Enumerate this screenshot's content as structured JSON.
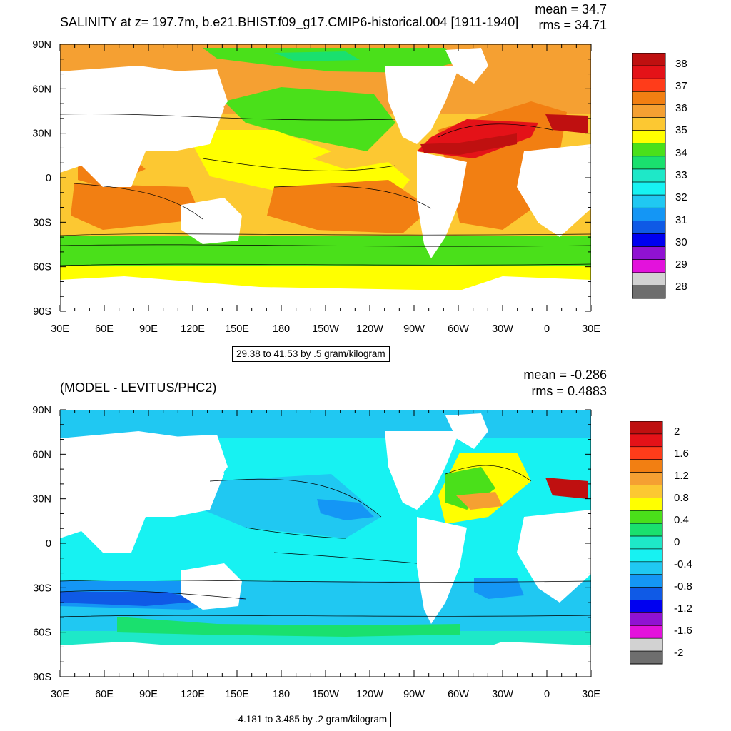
{
  "panel_top": {
    "title": "SALINITY at z= 197.7m, b.e21.BHIST.f09_g17.CMIP6-historical.004 [1911-1940]",
    "mean_text": "mean = 34.7",
    "rms_text": "rms = 34.71",
    "range_text": "29.38 to 41.53 by .5 gram/kilogram",
    "colorbar": {
      "labels": [
        "38",
        "37",
        "36",
        "35",
        "34",
        "33",
        "32",
        "31",
        "30",
        "29",
        "28"
      ],
      "colors": [
        "#bf1010",
        "#e41218",
        "#ff3c1a",
        "#f27f12",
        "#f5a032",
        "#fcc832",
        "#ffff00",
        "#4ae01a",
        "#1ae06e",
        "#1ee8c8",
        "#17f2f2",
        "#20c8f2",
        "#1496f5",
        "#0f5ae6",
        "#0000f0",
        "#9012d2",
        "#e312dc",
        "#d2d2d2",
        "#6e6e6e"
      ]
    }
  },
  "panel_bottom": {
    "title": "(MODEL - LEVITUS/PHC2)",
    "mean_text": "mean = -0.286",
    "rms_text": "rms = 0.4883",
    "range_text": "-4.181 to 3.485 by .2 gram/kilogram",
    "colorbar": {
      "labels": [
        "2",
        "1.6",
        "1.2",
        "0.8",
        "0.4",
        "0",
        "-0.4",
        "-0.8",
        "-1.2",
        "-1.6",
        "-2"
      ],
      "colors": [
        "#bf1010",
        "#e41218",
        "#ff3c1a",
        "#f27f12",
        "#f5a032",
        "#fcc832",
        "#ffff00",
        "#4ae01a",
        "#1ae06e",
        "#1ee8c8",
        "#17f2f2",
        "#20c8f2",
        "#1496f5",
        "#0f5ae6",
        "#0000f0",
        "#9012d2",
        "#e312dc",
        "#d2d2d2",
        "#6e6e6e"
      ]
    }
  },
  "axes": {
    "lat_labels": [
      "90N",
      "60N",
      "30N",
      "0",
      "30S",
      "60S",
      "90S"
    ],
    "lon_labels": [
      "30E",
      "60E",
      "90E",
      "120E",
      "150E",
      "180",
      "150W",
      "120W",
      "90W",
      "60W",
      "30W",
      "0",
      "30E"
    ]
  }
}
